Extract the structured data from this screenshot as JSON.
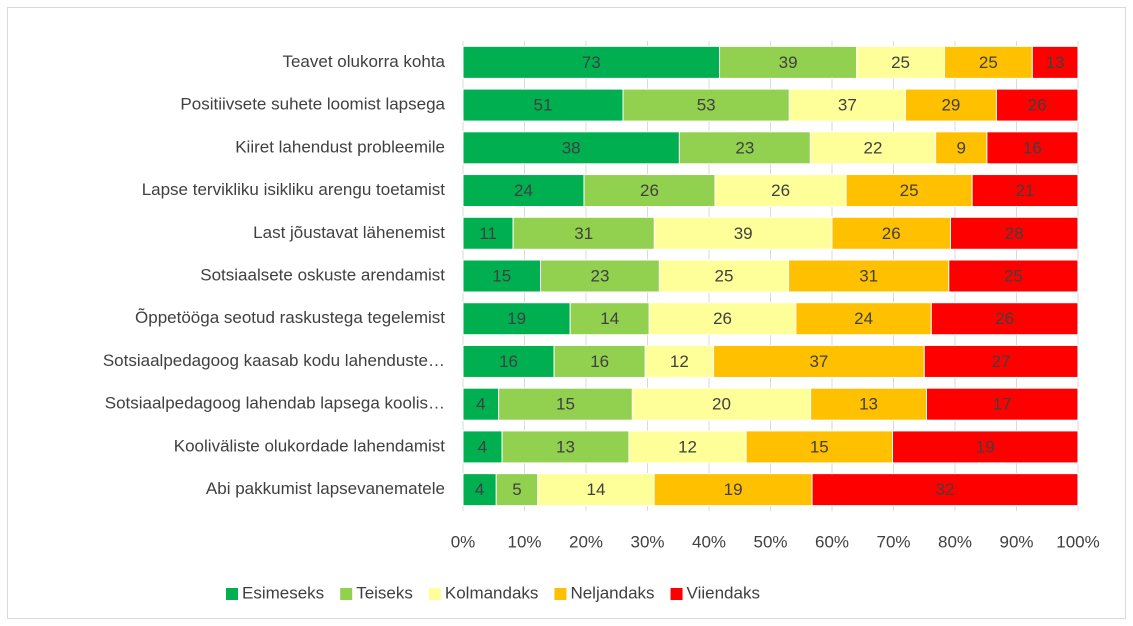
{
  "chart_data": {
    "type": "bar",
    "orientation": "horizontal",
    "stacked": "percent",
    "categories": [
      "Teavet olukorra kohta",
      "Positiivsete suhete loomist lapsega",
      "Kiiret lahendust probleemile",
      "Lapse tervikliku isikliku arengu toetamist",
      "Last jõustavat lähenemist",
      "Sotsiaalsete oskuste arendamist",
      "Õppetööga seotud raskustega tegelemist",
      "Sotsiaalpedagoog kaasab kodu lahenduste…",
      "Sotsiaalpedagoog lahendab lapsega koolis…",
      "Kooliväliste olukordade lahendamist",
      "Abi pakkumist lapsevanematele"
    ],
    "series": [
      {
        "name": "Esimeseks",
        "color": "#00b050",
        "values": [
          73,
          51,
          38,
          24,
          11,
          15,
          19,
          16,
          4,
          4,
          4
        ]
      },
      {
        "name": "Teiseks",
        "color": "#92d050",
        "values": [
          39,
          53,
          23,
          26,
          31,
          23,
          14,
          16,
          15,
          13,
          5
        ]
      },
      {
        "name": "Kolmandaks",
        "color": "#ffff99",
        "values": [
          25,
          37,
          22,
          26,
          39,
          25,
          26,
          12,
          20,
          12,
          14
        ]
      },
      {
        "name": "Neljandaks",
        "color": "#ffc000",
        "values": [
          25,
          29,
          9,
          25,
          26,
          31,
          24,
          37,
          13,
          15,
          19
        ]
      },
      {
        "name": "Viiendaks",
        "color": "#ff0000",
        "values": [
          13,
          26,
          16,
          21,
          28,
          25,
          26,
          27,
          17,
          19,
          32
        ]
      }
    ],
    "xlim": [
      0,
      100
    ],
    "xticks": [
      {
        "value": 0,
        "label": "0%"
      },
      {
        "value": 10,
        "label": "10%"
      },
      {
        "value": 20,
        "label": "20%"
      },
      {
        "value": 30,
        "label": "30%"
      },
      {
        "value": 40,
        "label": "40%"
      },
      {
        "value": 50,
        "label": "50%"
      },
      {
        "value": 60,
        "label": "60%"
      },
      {
        "value": 70,
        "label": "70%"
      },
      {
        "value": 80,
        "label": "80%"
      },
      {
        "value": 90,
        "label": "90%"
      },
      {
        "value": 100,
        "label": "100%"
      }
    ],
    "grid": true,
    "legend": "bottom"
  }
}
